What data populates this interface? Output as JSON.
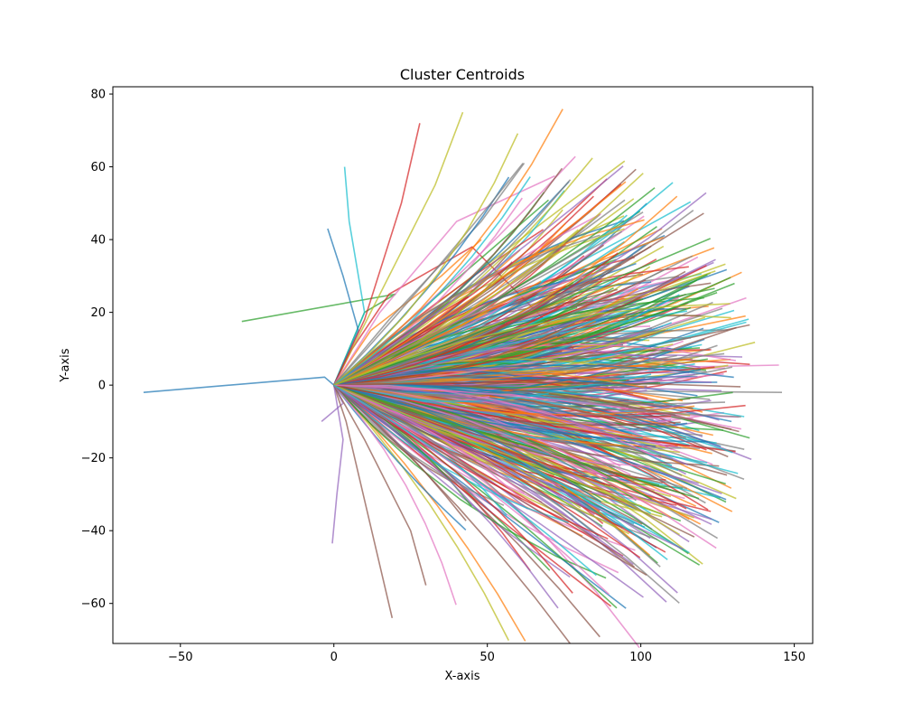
{
  "chart_data": {
    "type": "line",
    "title": "Cluster Centroids",
    "xlabel": "X-axis",
    "ylabel": "Y-axis",
    "xlim": [
      -72,
      156
    ],
    "ylim": [
      -71,
      82
    ],
    "xticks": [
      -50,
      0,
      50,
      100,
      150
    ],
    "yticks": [
      -60,
      -40,
      -20,
      0,
      20,
      40,
      60,
      80
    ],
    "xtick_labels": [
      "−50",
      "0",
      "50",
      "100",
      "150"
    ],
    "ytick_labels": [
      "−60",
      "−40",
      "−20",
      "0",
      "20",
      "40",
      "60",
      "80"
    ],
    "grid": false,
    "legend": "none",
    "series_count": 600,
    "colors": [
      "#1f77b4",
      "#ff7f0e",
      "#2ca02c",
      "#d62728",
      "#9467bd",
      "#8c564b",
      "#e377c2",
      "#7f7f7f",
      "#bcbd22",
      "#17becf"
    ],
    "series": [
      {
        "x": [
          0,
          -3,
          -62
        ],
        "y": [
          0,
          2.2,
          -2
        ]
      },
      {
        "x": [
          0,
          12,
          35,
          48
        ],
        "y": [
          0,
          15,
          30,
          40
        ]
      },
      {
        "x": [
          0,
          10,
          20,
          -30
        ],
        "y": [
          0,
          20,
          25,
          17.5
        ]
      },
      {
        "x": [
          0,
          6,
          18,
          45,
          78
        ],
        "y": [
          0,
          10,
          25,
          38,
          10
        ]
      },
      {
        "x": [
          0,
          3,
          -4
        ],
        "y": [
          0,
          -5,
          -10
        ]
      },
      {
        "x": [
          0,
          4,
          19
        ],
        "y": [
          0,
          -10,
          -64
        ]
      },
      {
        "x": [
          0,
          20,
          60,
          145
        ],
        "y": [
          0,
          2,
          4,
          5.5
        ]
      },
      {
        "x": [
          0,
          30,
          80,
          146
        ],
        "y": [
          0,
          -0.5,
          -1.5,
          -2
        ]
      },
      {
        "x": [
          0,
          15,
          33,
          42
        ],
        "y": [
          0,
          25,
          55,
          75
        ]
      },
      {
        "x": [
          0,
          10,
          5,
          3.5
        ],
        "y": [
          0,
          20,
          45,
          60
        ]
      },
      {
        "x": [
          0,
          8,
          3,
          -2
        ],
        "y": [
          0,
          15,
          30,
          43
        ]
      },
      {
        "x": [
          0,
          20,
          50,
          81
        ],
        "y": [
          0,
          -10,
          -28,
          -41.5
        ]
      },
      {
        "x": [
          0,
          20,
          50,
          106
        ],
        "y": [
          0,
          -5,
          -15,
          -27.5
        ]
      },
      {
        "x": [
          0,
          10,
          22,
          28
        ],
        "y": [
          0,
          18,
          50,
          72
        ]
      },
      {
        "x": [
          0,
          3,
          1,
          -0.5
        ],
        "y": [
          0,
          -15,
          -30,
          -43.5
        ]
      },
      {
        "x": [
          0,
          10,
          25,
          30
        ],
        "y": [
          0,
          -15,
          -40,
          -55
        ]
      },
      {
        "x": [
          0,
          15,
          40,
          72
        ],
        "y": [
          0,
          20,
          45,
          57.5
        ]
      },
      {
        "x": [
          0,
          18,
          48,
          62
        ],
        "y": [
          0,
          18,
          45,
          61
        ]
      },
      {
        "x": [
          0,
          20,
          50,
          94.5
        ],
        "y": [
          0,
          12,
          30,
          46.5
        ]
      },
      {
        "x": [
          0,
          20,
          60,
          92
        ],
        "y": [
          0,
          -8,
          -20,
          -29
        ]
      }
    ]
  }
}
